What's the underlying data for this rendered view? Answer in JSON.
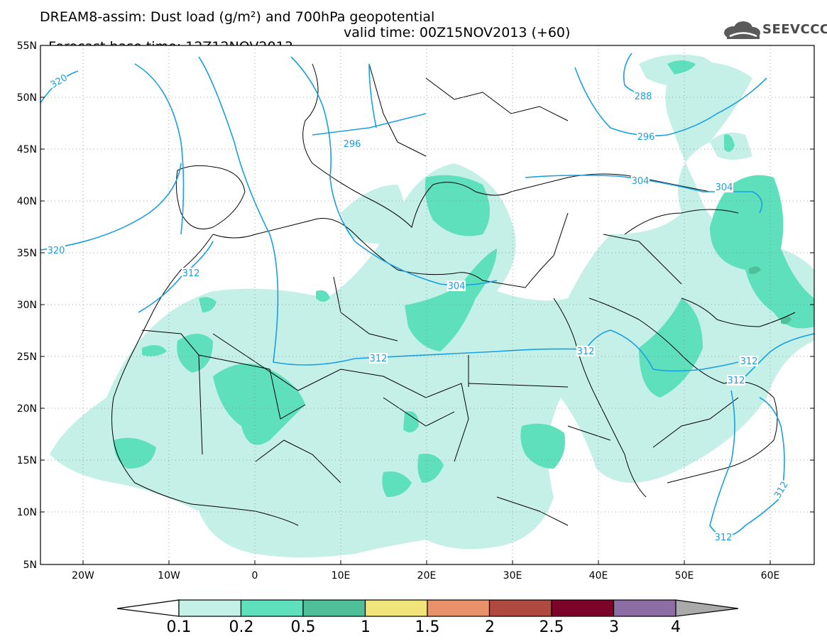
{
  "title": {
    "line1": "DREAM8-assim: Dust load (g/m²) and 700hPa geopotential",
    "base_time": "Forecast base time: 12Z12NOV2013",
    "valid_time": "valid time: 00Z15NOV2013 (+60)"
  },
  "logo": {
    "text": "SEEVCCC",
    "icon": "cloud-logo-icon"
  },
  "map": {
    "lon_range": [
      -25,
      65
    ],
    "lat_range": [
      5,
      55
    ],
    "lat_labels": [
      "55N",
      "50N",
      "45N",
      "40N",
      "35N",
      "30N",
      "25N",
      "20N",
      "15N",
      "10N",
      "5N"
    ],
    "lon_labels": [
      "20W",
      "10W",
      "0",
      "10E",
      "20E",
      "30E",
      "40E",
      "50E",
      "60E"
    ],
    "contour_labels": [
      "320",
      "320",
      "312",
      "296",
      "288",
      "296",
      "304",
      "304",
      "304",
      "312",
      "312",
      "312",
      "312",
      "312",
      "312"
    ],
    "colors": {
      "contour": "#1a9fe0",
      "dust_0_1": "#c4f0e8",
      "dust_0_2": "#5fe0bc",
      "dust_0_5": "#4fbf99"
    }
  },
  "colorbar": {
    "labels": [
      "0.1",
      "0.2",
      "0.5",
      "1",
      "1.5",
      "2",
      "2.5",
      "3",
      "4"
    ],
    "colors": [
      "#c4f0e8",
      "#5fe0bc",
      "#4fbf99",
      "#f0e47a",
      "#e9916a",
      "#b0493f",
      "#7c0428",
      "#8c6ea4"
    ]
  }
}
